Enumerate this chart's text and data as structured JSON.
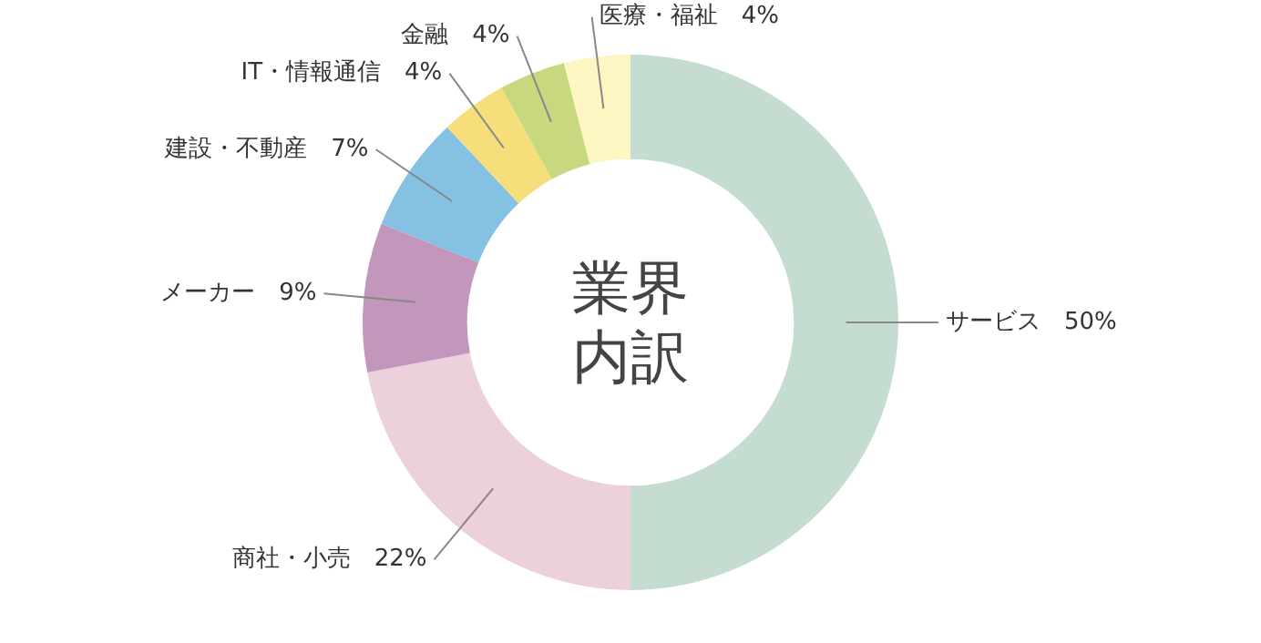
{
  "chart_data": {
    "type": "donut",
    "title": "業界内訳",
    "categories": [
      "サービス",
      "商社・小売",
      "メーカー",
      "建設・不動産",
      "IT・情報通信",
      "金融",
      "医療・福祉"
    ],
    "values": [
      50,
      22,
      9,
      7,
      4,
      4,
      4
    ],
    "value_labels": [
      "50%",
      "22%",
      "9%",
      "7%",
      "4%",
      "4%",
      "4%"
    ],
    "colors": [
      "#c5ddd0",
      "#ecd0dc",
      "#c297bb",
      "#85c1e3",
      "#f6df7a",
      "#c8d87f",
      "#fdf5c2"
    ],
    "legend": false
  }
}
